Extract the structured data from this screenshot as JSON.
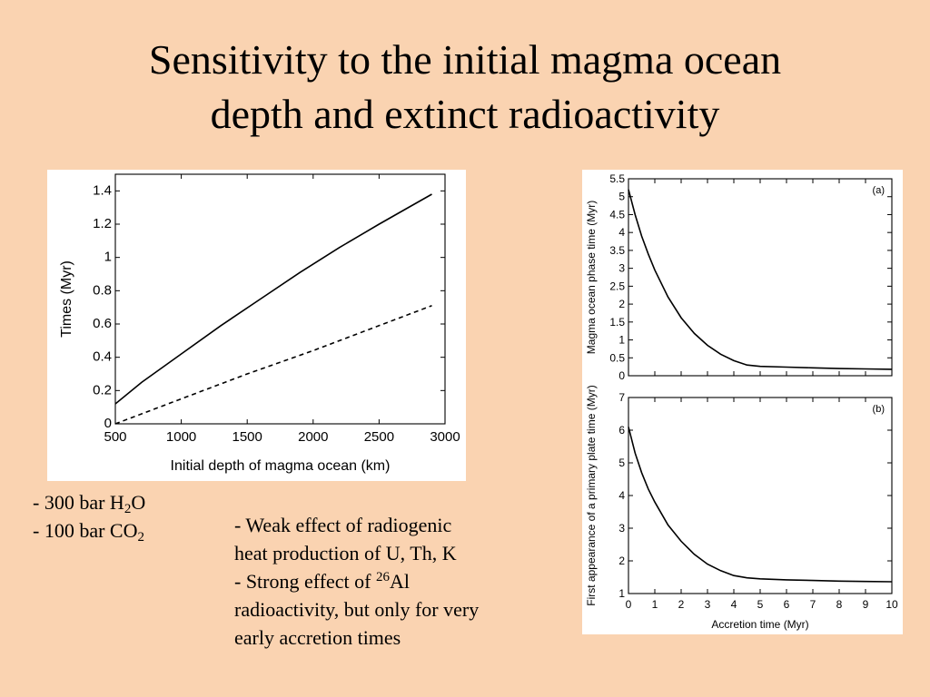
{
  "slide": {
    "title_line1": "Sensitivity to the initial magma ocean",
    "title_line2": "depth and extinct radioactivity"
  },
  "notes": {
    "gas_h2o_prefix": "- 300 bar H",
    "gas_h2o_sub": "2",
    "gas_h2o_suffix": "O",
    "gas_co2_prefix": "- 100 bar CO",
    "gas_co2_sub": "2",
    "radio_line1": "- Weak effect of radiogenic",
    "radio_line2": "heat production of  U, Th, K",
    "radio_line3_prefix": "- Strong effect of ",
    "radio_line3_sup": "26",
    "radio_line3_suffix": "Al",
    "radio_line4": "radioactivity, but only for very",
    "radio_line5": "early accretion times"
  },
  "chart_data": [
    {
      "type": "line",
      "xlabel": "Initial depth of magma ocean (km)",
      "ylabel": "Times (Myr)",
      "xlim": [
        500,
        3000
      ],
      "ylim": [
        0,
        1.5
      ],
      "xticks": [
        500,
        1000,
        1500,
        2000,
        2500,
        3000
      ],
      "yticks": [
        0,
        0.2,
        0.4,
        0.6,
        0.8,
        1,
        1.2,
        1.4
      ],
      "series": [
        {
          "style": "solid",
          "x": [
            500,
            700,
            1000,
            1300,
            1600,
            1900,
            2200,
            2500,
            2700,
            2900
          ],
          "y": [
            0.12,
            0.25,
            0.42,
            0.59,
            0.75,
            0.91,
            1.06,
            1.2,
            1.29,
            1.38
          ]
        },
        {
          "style": "dashed",
          "x": [
            500,
            1000,
            1500,
            2000,
            2500,
            2900
          ],
          "y": [
            0.0,
            0.15,
            0.3,
            0.44,
            0.59,
            0.71
          ]
        }
      ]
    },
    {
      "type": "line",
      "panel_label": "(a)",
      "xlabel": "",
      "ylabel": "Magma ocean phase time (Myr)",
      "xlim": [
        0,
        10
      ],
      "ylim": [
        0,
        5.5
      ],
      "yticks": [
        0,
        0.5,
        1,
        1.5,
        2,
        2.5,
        3,
        3.5,
        4,
        4.5,
        5,
        5.5
      ],
      "series": [
        {
          "style": "solid",
          "x": [
            0,
            0.25,
            0.5,
            0.75,
            1,
            1.5,
            2,
            2.5,
            3,
            3.5,
            4,
            4.5,
            5,
            6,
            7,
            8,
            9,
            10
          ],
          "y": [
            5.2,
            4.5,
            3.9,
            3.4,
            2.95,
            2.2,
            1.62,
            1.18,
            0.85,
            0.6,
            0.42,
            0.3,
            0.26,
            0.24,
            0.22,
            0.2,
            0.19,
            0.18
          ]
        }
      ]
    },
    {
      "type": "line",
      "panel_label": "(b)",
      "xlabel": "Accretion time (Myr)",
      "ylabel": "First appearance of a primary plate time (Myr)",
      "xlim": [
        0,
        10
      ],
      "ylim": [
        1,
        7
      ],
      "xticks": [
        0,
        1,
        2,
        3,
        4,
        5,
        6,
        7,
        8,
        9,
        10
      ],
      "yticks": [
        1,
        2,
        3,
        4,
        5,
        6,
        7
      ],
      "series": [
        {
          "style": "solid",
          "x": [
            0,
            0.25,
            0.5,
            0.75,
            1,
            1.5,
            2,
            2.5,
            3,
            3.5,
            4,
            4.5,
            5,
            6,
            7,
            8,
            9,
            10
          ],
          "y": [
            6.1,
            5.3,
            4.7,
            4.2,
            3.8,
            3.1,
            2.6,
            2.2,
            1.9,
            1.7,
            1.55,
            1.48,
            1.45,
            1.42,
            1.4,
            1.38,
            1.37,
            1.36
          ]
        }
      ]
    }
  ]
}
